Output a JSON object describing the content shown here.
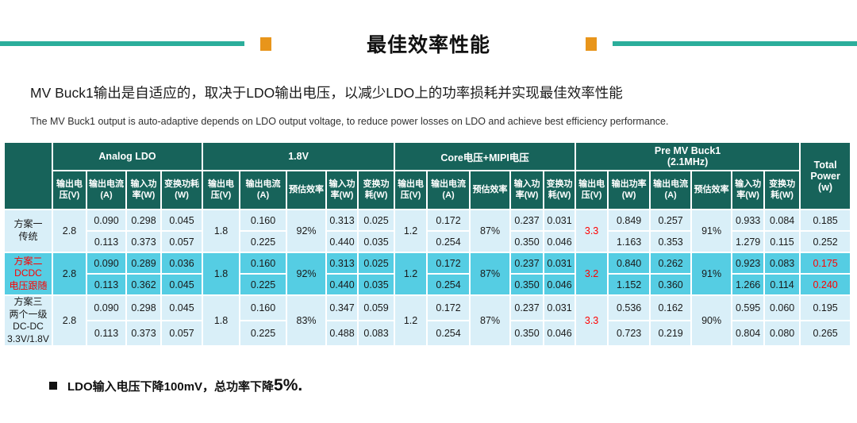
{
  "slide": {
    "title": "最佳效率性能",
    "subtitle_cn": "MV Buck1输出是自适应的，取决于LDO输出电压，以减少LDO上的功率损耗并实现最佳效率性能",
    "subtitle_en": "The MV Buck1 output is auto-adaptive depends on LDO output voltage, to reduce power losses on LDO and achieve best efficiency performance.",
    "footer": {
      "text": "LDO输入电压下降100mV，总功率下降",
      "emphasis": "5%."
    }
  },
  "colors": {
    "header_teal": "#17635A",
    "row_light": "#D9EFF8",
    "row_highlight": "#55CDE3",
    "rule_teal": "#2BAE9B",
    "accent_orange": "#E8951B",
    "red_text": "#FF0000"
  },
  "table": {
    "corner": "",
    "groups": [
      {
        "label": "Analog LDO",
        "span": 4
      },
      {
        "label": "1.8V",
        "span": 5
      },
      {
        "label": "Core电压+MIPI电压",
        "span": 5
      },
      {
        "label": "Pre MV Buck1\n(2.1MHz)",
        "span": 6
      }
    ],
    "total_header": "Total\nPower\n(w)",
    "columns": [
      "输出电压(V)",
      "输出电流(A)",
      "输入功率(W)",
      "变换功耗(W)",
      "输出电压(V)",
      "输出电流(A)",
      "预估效率",
      "输入功率(W)",
      "变换功耗(W)",
      "输出电压(V)",
      "输出电流(A)",
      "预估效率",
      "输入功率(W)",
      "变换功耗(W)",
      "输出电压(V)",
      "输出功率(W)",
      "输出电流(A)",
      "预估效率",
      "输入功率(W)",
      "变换功耗(W)"
    ],
    "rows": [
      {
        "label": "方案一\n传统",
        "highlight": false,
        "label_red": false,
        "totals_red": false,
        "ldo_v": "2.8",
        "v18": "1.8",
        "eff18": "92%",
        "core_v": "1.2",
        "eff_core": "87%",
        "buck_v": "3.3",
        "eff_buck": "91%",
        "sub": [
          {
            "ldo_i": "0.090",
            "ldo_pin": "0.298",
            "ldo_loss": "0.045",
            "i18": "0.160",
            "pin18": "0.313",
            "loss18": "0.025",
            "core_i": "0.172",
            "core_pin": "0.237",
            "core_loss": "0.031",
            "buck_pout": "0.849",
            "buck_i": "0.257",
            "buck_pin": "0.933",
            "buck_loss": "0.084",
            "total": "0.185"
          },
          {
            "ldo_i": "0.113",
            "ldo_pin": "0.373",
            "ldo_loss": "0.057",
            "i18": "0.225",
            "pin18": "0.440",
            "loss18": "0.035",
            "core_i": "0.254",
            "core_pin": "0.350",
            "core_loss": "0.046",
            "buck_pout": "1.163",
            "buck_i": "0.353",
            "buck_pin": "1.279",
            "buck_loss": "0.115",
            "total": "0.252"
          }
        ]
      },
      {
        "label": "方案二\nDCDC\n电压跟随",
        "highlight": true,
        "label_red": true,
        "totals_red": true,
        "ldo_v": "2.8",
        "v18": "1.8",
        "eff18": "92%",
        "core_v": "1.2",
        "eff_core": "87%",
        "buck_v": "3.2",
        "eff_buck": "91%",
        "sub": [
          {
            "ldo_i": "0.090",
            "ldo_pin": "0.289",
            "ldo_loss": "0.036",
            "i18": "0.160",
            "pin18": "0.313",
            "loss18": "0.025",
            "core_i": "0.172",
            "core_pin": "0.237",
            "core_loss": "0.031",
            "buck_pout": "0.840",
            "buck_i": "0.262",
            "buck_pin": "0.923",
            "buck_loss": "0.083",
            "total": "0.175"
          },
          {
            "ldo_i": "0.113",
            "ldo_pin": "0.362",
            "ldo_loss": "0.045",
            "i18": "0.225",
            "pin18": "0.440",
            "loss18": "0.035",
            "core_i": "0.254",
            "core_pin": "0.350",
            "core_loss": "0.046",
            "buck_pout": "1.152",
            "buck_i": "0.360",
            "buck_pin": "1.266",
            "buck_loss": "0.114",
            "total": "0.240"
          }
        ]
      },
      {
        "label": "方案三\n两个一级\nDC-DC\n3.3V/1.8V",
        "highlight": false,
        "label_red": false,
        "totals_red": false,
        "ldo_v": "2.8",
        "v18": "1.8",
        "eff18": "83%",
        "core_v": "1.2",
        "eff_core": "87%",
        "buck_v": "3.3",
        "eff_buck": "90%",
        "sub": [
          {
            "ldo_i": "0.090",
            "ldo_pin": "0.298",
            "ldo_loss": "0.045",
            "i18": "0.160",
            "pin18": "0.347",
            "loss18": "0.059",
            "core_i": "0.172",
            "core_pin": "0.237",
            "core_loss": "0.031",
            "buck_pout": "0.536",
            "buck_i": "0.162",
            "buck_pin": "0.595",
            "buck_loss": "0.060",
            "total": "0.195"
          },
          {
            "ldo_i": "0.113",
            "ldo_pin": "0.373",
            "ldo_loss": "0.057",
            "i18": "0.225",
            "pin18": "0.488",
            "loss18": "0.083",
            "core_i": "0.254",
            "core_pin": "0.350",
            "core_loss": "0.046",
            "buck_pout": "0.723",
            "buck_i": "0.219",
            "buck_pin": "0.804",
            "buck_loss": "0.080",
            "total": "0.265"
          }
        ]
      }
    ]
  }
}
